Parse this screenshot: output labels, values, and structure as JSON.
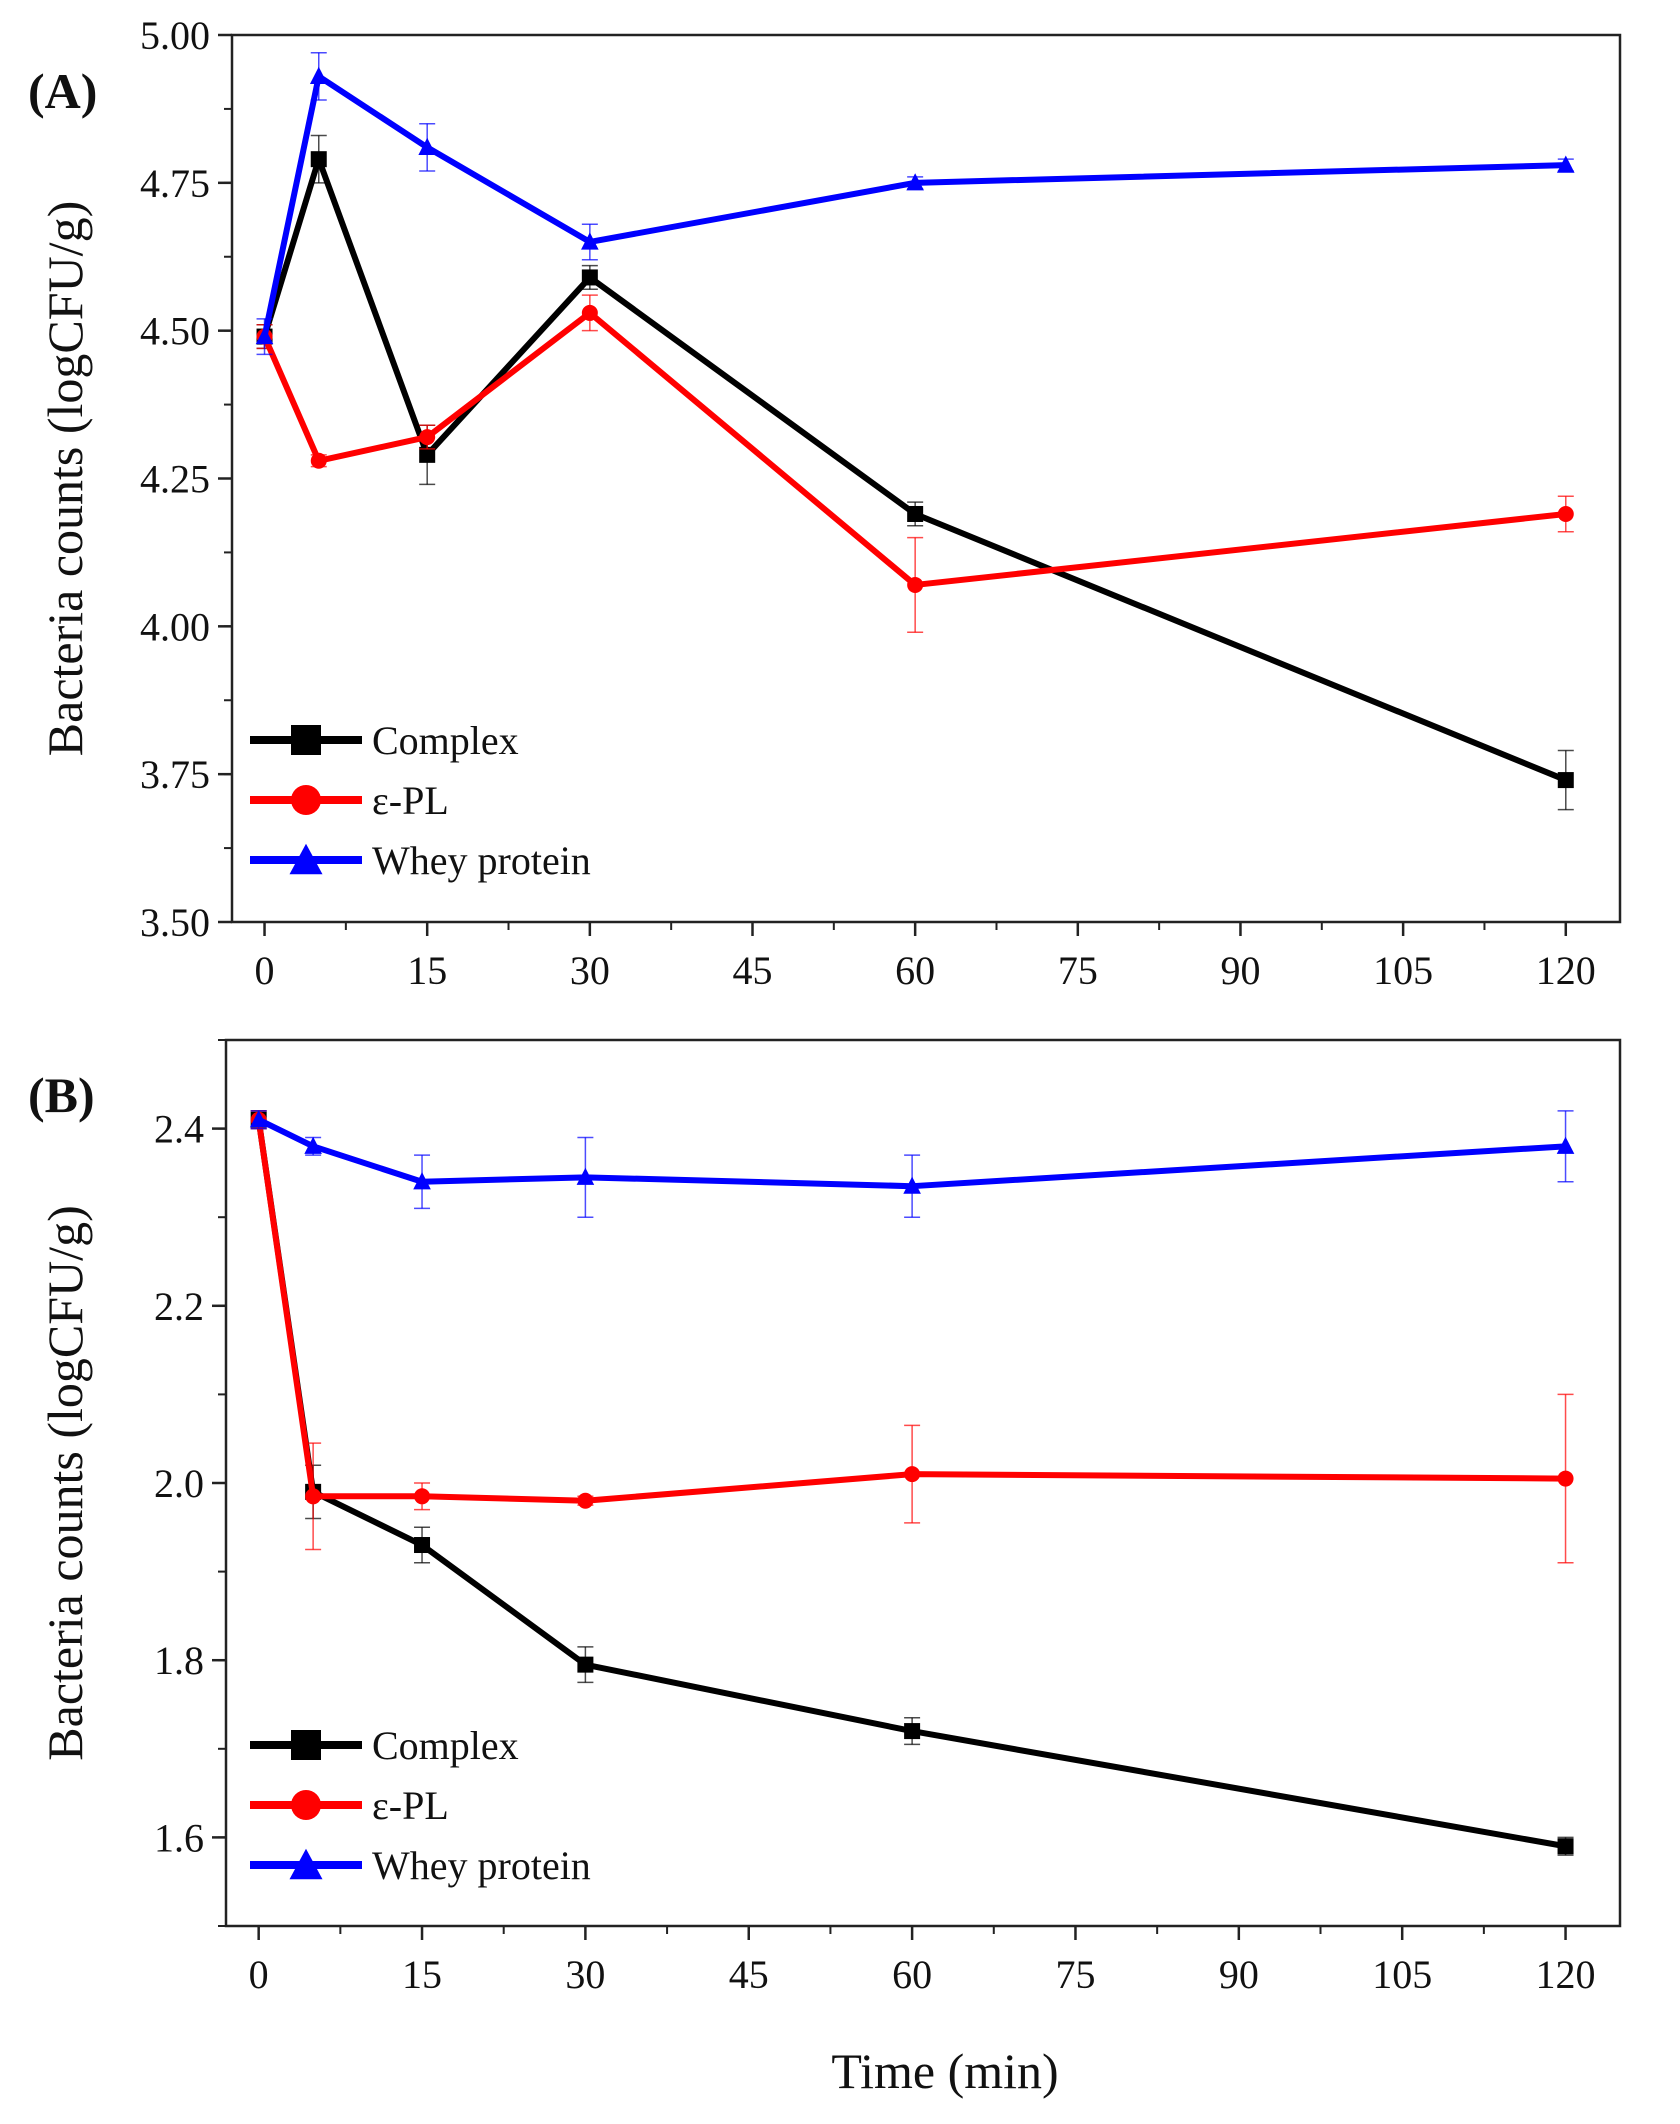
{
  "figure": {
    "xlabel": "Time (min)",
    "colors": {
      "complex": "#000000",
      "epl": "#ff0000",
      "whey": "#0000ff"
    }
  },
  "chart_data": [
    {
      "panel_label": "(A)",
      "type": "line",
      "xlabel": "Time (min)",
      "ylabel": "Bacteria counts (logCFU/g)",
      "xlim": [
        -3,
        125
      ],
      "ylim": [
        3.5,
        5.0
      ],
      "xticks": [
        "0",
        "15",
        "30",
        "45",
        "60",
        "75",
        "90",
        "105",
        "120"
      ],
      "yticks": [
        "3.50",
        "3.75",
        "4.00",
        "4.25",
        "4.50",
        "4.75",
        "5.00"
      ],
      "legend_position": "lower-left",
      "x": [
        0,
        5,
        15,
        30,
        60,
        120
      ],
      "series": [
        {
          "key": "complex",
          "name": "Complex",
          "marker": "square",
          "color": "#000000",
          "values": [
            4.49,
            4.79,
            4.29,
            4.59,
            4.19,
            3.74
          ],
          "errors": [
            0.02,
            0.04,
            0.05,
            0.02,
            0.02,
            0.05
          ]
        },
        {
          "key": "epl",
          "name": "ε-PL",
          "marker": "circle",
          "color": "#ff0000",
          "values": [
            4.49,
            4.28,
            4.32,
            4.53,
            4.07,
            4.19
          ],
          "errors": [
            0.02,
            0.01,
            0.02,
            0.03,
            0.08,
            0.03
          ]
        },
        {
          "key": "whey",
          "name": "Whey protein",
          "marker": "triangle",
          "color": "#0000ff",
          "values": [
            4.49,
            4.93,
            4.81,
            4.65,
            4.75,
            4.78
          ],
          "errors": [
            0.03,
            0.04,
            0.04,
            0.03,
            0.01,
            0.01
          ]
        }
      ]
    },
    {
      "panel_label": "(B)",
      "type": "line",
      "xlabel": "Time (min)",
      "ylabel": "Bacteria counts (logCFU/g)",
      "xlim": [
        -3,
        125
      ],
      "ylim": [
        1.5,
        2.5
      ],
      "xticks": [
        "0",
        "15",
        "30",
        "45",
        "60",
        "75",
        "90",
        "105",
        "120"
      ],
      "yticks": [
        "1.6",
        "1.8",
        "2.0",
        "2.2",
        "2.4"
      ],
      "legend_position": "lower-left",
      "x": [
        0,
        5,
        15,
        30,
        60,
        120
      ],
      "series": [
        {
          "key": "complex",
          "name": "Complex",
          "marker": "square",
          "color": "#000000",
          "values": [
            2.41,
            1.99,
            1.93,
            1.795,
            1.72,
            1.59
          ],
          "errors": [
            0.01,
            0.03,
            0.02,
            0.02,
            0.015,
            0.01
          ]
        },
        {
          "key": "epl",
          "name": "ε-PL",
          "marker": "circle",
          "color": "#ff0000",
          "values": [
            2.41,
            1.985,
            1.985,
            1.98,
            2.01,
            2.005
          ],
          "errors": [
            0.01,
            0.06,
            0.015,
            0.005,
            0.055,
            0.095
          ]
        },
        {
          "key": "whey",
          "name": "Whey protein",
          "marker": "triangle",
          "color": "#0000ff",
          "values": [
            2.41,
            2.38,
            2.34,
            2.345,
            2.335,
            2.38
          ],
          "errors": [
            0.01,
            0.01,
            0.03,
            0.045,
            0.035,
            0.04
          ]
        }
      ]
    }
  ]
}
